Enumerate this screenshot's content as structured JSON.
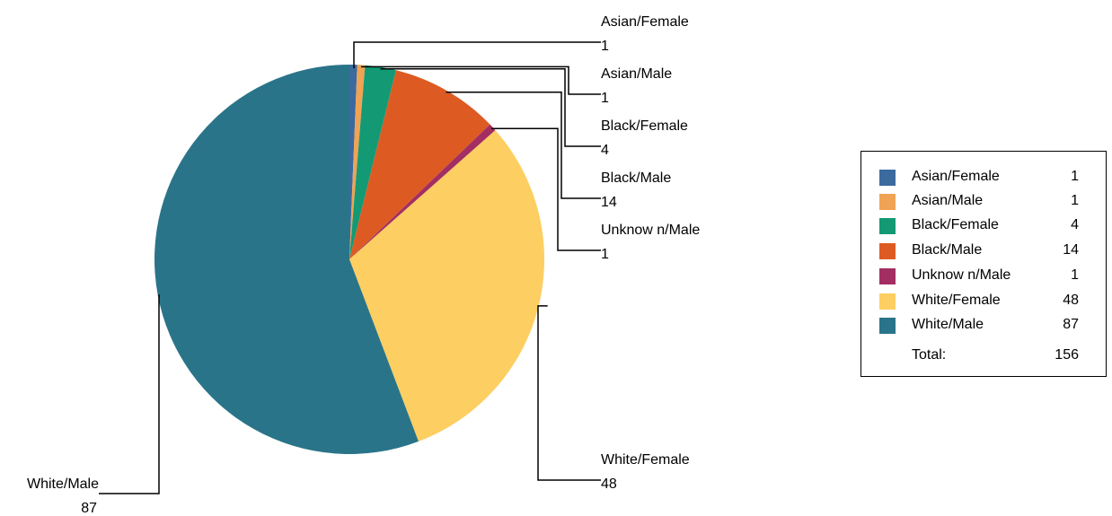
{
  "chart_data": {
    "type": "pie",
    "slices": [
      {
        "label": "Asian/Female",
        "value": 1,
        "color": "#3B6A9E"
      },
      {
        "label": "Asian/Male",
        "value": 1,
        "color": "#F0A354"
      },
      {
        "label": "Black/Female",
        "value": 4,
        "color": "#139A74"
      },
      {
        "label": "Black/Male",
        "value": 14,
        "color": "#DD5B23"
      },
      {
        "label": "Unknow n/Male",
        "value": 1,
        "color": "#A32E62"
      },
      {
        "label": "White/Female",
        "value": 48,
        "color": "#FDCE61"
      },
      {
        "label": "White/Male",
        "value": 87,
        "color": "#2A7489"
      }
    ],
    "legend": {
      "position": "right",
      "total_label": "Total:",
      "total_value": "156"
    }
  }
}
